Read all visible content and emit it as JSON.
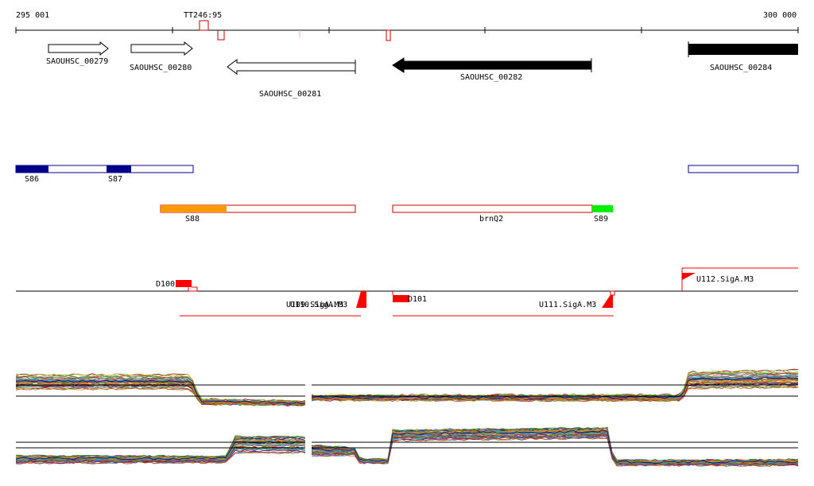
{
  "axis": {
    "start_label": "295 001",
    "end_label": "300 000",
    "marker_label": "TT246:95"
  },
  "genes": [
    {
      "id": "SAOUHSC_00279",
      "strand": "+",
      "filled": false
    },
    {
      "id": "SAOUHSC_00280",
      "strand": "+",
      "filled": false
    },
    {
      "id": "SAOUHSC_00281",
      "strand": "-",
      "filled": false
    },
    {
      "id": "SAOUHSC_00282",
      "strand": "-",
      "filled": true
    },
    {
      "id": "SAOUHSC_00284",
      "strand": "+",
      "filled": true
    }
  ],
  "segments": [
    {
      "label": "S86",
      "color": "#00008b"
    },
    {
      "label": "S87",
      "color": "#00008b"
    },
    {
      "label": "S88",
      "color": "#ff9900"
    },
    {
      "label": "brnQ2",
      "color": "#cc0000"
    },
    {
      "label": "S89",
      "color": "#00ee00"
    }
  ],
  "features": {
    "d100": "D100",
    "d101": "D101",
    "u109": "U109.SigA.M3",
    "u110": "U110.SigA.M3",
    "u111": "U111.SigA.M3",
    "u112": "U112.SigA.M3"
  },
  "colors": {
    "gene_outline": "#000000",
    "feature_red": "#ff0000",
    "segment_outline_red": "#cc0000",
    "segment_outline_blue": "#00008b"
  }
}
